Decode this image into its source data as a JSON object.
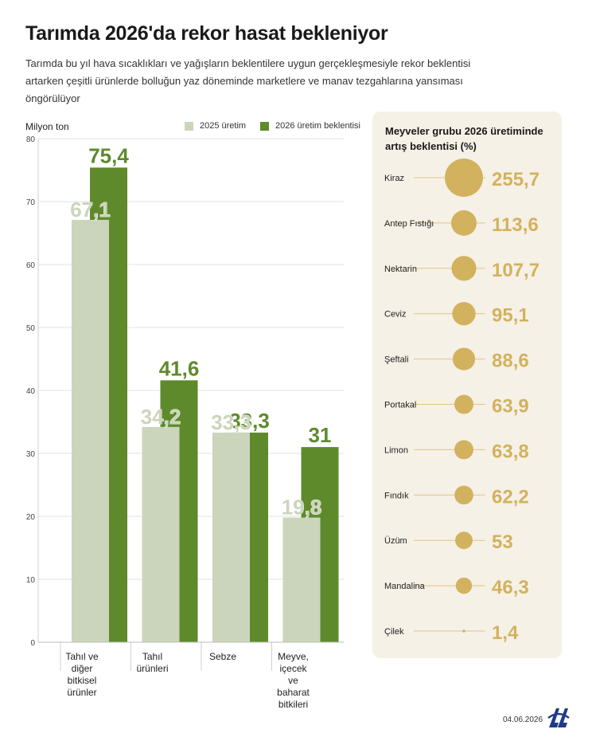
{
  "title": "Tarımda 2026'da rekor hasat bekleniyor",
  "subtitle": "Tarımda bu yıl hava sıcaklıkları ve yağışların beklentilere uygun gerçekleşmesiyle rekor beklentisi artarken çeşitli ürünlerde bolluğun yaz döneminde marketlere ve manav tezgahlarına yansıması öngörülüyor",
  "date": "04.06.2026",
  "colors": {
    "series_2025": "#cbd5bb",
    "series_2026": "#5e8a2c",
    "bubble": "#d2b25e",
    "panel": "#f6f1e6"
  },
  "logo": {
    "icon": "aa-logo-icon",
    "color": "#1f3a8a"
  },
  "chart_data": [
    {
      "type": "bar",
      "ylabel": "Milyon ton",
      "ylim": [
        0,
        80
      ],
      "yticks": [
        0,
        10,
        20,
        30,
        40,
        50,
        60,
        70,
        80
      ],
      "legend_position": "top",
      "categories": [
        "Tahıl ve diğer bitkisel ürünler",
        "Tahıl ürünleri",
        "Sebze",
        "Meyve, içecek ve baharat bitkileri"
      ],
      "category_lines": [
        [
          "Tahıl ve",
          "diğer",
          "bitkisel",
          "ürünler"
        ],
        [
          "Tahıl",
          "ürünleri"
        ],
        [
          "Sebze"
        ],
        [
          "Meyve,",
          "içecek",
          "ve",
          "baharat",
          "bitkileri"
        ]
      ],
      "series": [
        {
          "name": "2025 üretim",
          "values": [
            67.1,
            34.2,
            33.3,
            19.8
          ],
          "labels": [
            "67,1",
            "34,2",
            "33,3",
            "19,8"
          ]
        },
        {
          "name": "2026 üretim beklentisi",
          "values": [
            75.4,
            41.6,
            33.3,
            31
          ],
          "labels": [
            "75,4",
            "41,6",
            "33,3",
            "31"
          ]
        }
      ]
    },
    {
      "type": "scatter",
      "title": "Meyveler grubu 2026 üretiminde artış beklentisi (%)",
      "categories": [
        "Kiraz",
        "Antep Fıstığı",
        "Nektarin",
        "Ceviz",
        "Şeftali",
        "Portakal",
        "Limon",
        "Fındık",
        "Üzüm",
        "Mandalina",
        "Çilek"
      ],
      "values": [
        255.7,
        113.6,
        107.7,
        95.1,
        88.6,
        63.9,
        63.8,
        62.2,
        53,
        46.3,
        1.4
      ],
      "labels": [
        "255,7",
        "113,6",
        "107,7",
        "95,1",
        "88,6",
        "63,9",
        "63,8",
        "62,2",
        "53",
        "46,3",
        "1,4"
      ]
    }
  ]
}
